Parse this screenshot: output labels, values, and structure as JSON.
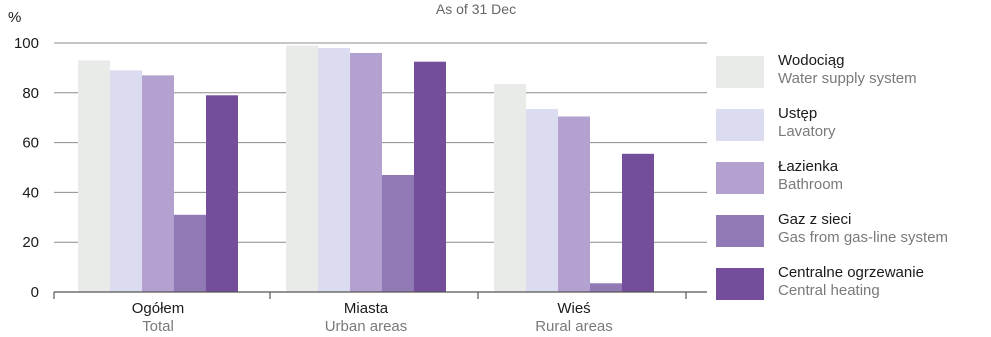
{
  "chart_data": {
    "type": "bar",
    "subtitle": "As of 31 Dec",
    "y_unit": "%",
    "ylim": [
      0,
      100
    ],
    "yticks": [
      0,
      20,
      40,
      60,
      80,
      100
    ],
    "grid": true,
    "legend_position": "right",
    "categories": [
      {
        "main": "Ogółem",
        "sub": "Total"
      },
      {
        "main": "Miasta",
        "sub": "Urban areas"
      },
      {
        "main": "Wieś",
        "sub": "Rural areas"
      }
    ],
    "series": [
      {
        "name": "Wodociąg",
        "name_en": "Water supply system",
        "color": "#e9ebe9",
        "values": [
          93,
          99,
          83.5
        ]
      },
      {
        "name": "Ustęp",
        "name_en": "Lavatory",
        "color": "#dcdcf0",
        "values": [
          89,
          98,
          73.5
        ]
      },
      {
        "name": "Łazienka",
        "name_en": "Bathroom",
        "color": "#b3a2d0",
        "values": [
          87,
          96,
          70.5
        ]
      },
      {
        "name": "Gaz z sieci",
        "name_en": "Gas from gas-line system",
        "color": "#9179b5",
        "values": [
          31,
          47,
          3.5
        ]
      },
      {
        "name": "Centralne ogrzewanie",
        "name_en": "Central heating",
        "color": "#744e9b",
        "values": [
          79,
          92.5,
          55.5
        ]
      }
    ]
  }
}
